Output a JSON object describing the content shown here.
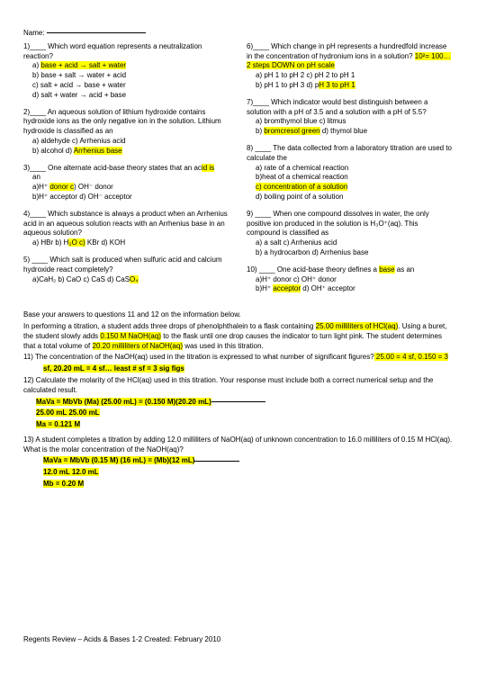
{
  "name_label": "Name:",
  "left": [
    {
      "num": "1)____",
      "text": "Which word equation represents a neutralization reaction?",
      "opts": [
        {
          "pre": "a)   ",
          "t": "base + acid → salt + water",
          "hl": true
        },
        {
          "pre": "b)   ",
          "t": "base + salt → water + acid",
          "hl": false
        },
        {
          "pre": "c)   ",
          "t": "salt + acid → base + water",
          "hl": false
        },
        {
          "pre": "d)   ",
          "t": "salt + water → acid + base",
          "hl": false
        }
      ]
    },
    {
      "num": "2)____",
      "text": "An aqueous solution of lithium hydroxide contains hydroxide ions as the only negative ion in the solution. Lithium hydroxide is classified as an",
      "opts": [
        {
          "pre": "a)   ",
          "t": "aldehyde  c) Arrhenius acid",
          "hl": false
        },
        {
          "pre": "b)   ",
          "t": "alcohol  d) ",
          "hl": false,
          "tail": "Arrhenius base",
          "tailhl": true
        }
      ]
    },
    {
      "num": "3)____",
      "text_parts": [
        {
          "t": "One alternate acid-base theory states that an ac",
          "hl": false
        },
        {
          "t": "id is",
          "hl": true
        }
      ],
      "text2": "an",
      "opts": [
        {
          "pre": "a)",
          "t": "H⁺ ",
          "hl": false,
          "mid": "donor  c",
          "midhl": true,
          "tail": ") OH⁻  donor"
        },
        {
          "pre": "b)",
          "t": "H⁺ acceptor  d) OH⁻ acceptor",
          "hl": false
        }
      ]
    },
    {
      "num": "4)____",
      "text": "Which substance is always a product when an Arrhenius acid in an aqueous solution reacts with an Arrhenius base in an aqueous solution?",
      "opts": [
        {
          "pre": "a)   ",
          "t": "HBr  b) H",
          "hl": false,
          "mid": "₂O c)",
          "midhl": true,
          "tail": " KBr d) KOH"
        }
      ]
    },
    {
      "num": "5)   ____",
      "text": "Which salt is produced when sulfuric acid and calcium hydroxide react completely?",
      "opts": [
        {
          "pre": "a)",
          "t": "CaH₂  b) CaO c) CaS d) CaS",
          "hl": false,
          "mid": "O₄",
          "midhl": true
        }
      ]
    }
  ],
  "right": [
    {
      "num": "6)____",
      "text_parts": [
        {
          "t": "Which change in pH represents a hundredfold increase in the concentration of hydronium ions in a solution? ",
          "hl": false
        },
        {
          "t": "10²= 100… 2 steps DOWN on pH scale",
          "hl": true
        }
      ],
      "opts": [
        {
          "pre": "a)   ",
          "t": "pH 1 to pH 2  c) pH 2 to pH 1",
          "hl": false
        },
        {
          "pre": "b)   ",
          "t": "pH 1 to pH 3  d) p",
          "hl": false,
          "mid": "H 3 to pH 1",
          "midhl": true
        }
      ]
    },
    {
      "num": "7)____",
      "text": "Which indicator would best distinguish between a solution with a pH of 3.5 and a solution with a pH of 5.5?",
      "opts": [
        {
          "pre": "a)   ",
          "t": "bromthymol blue   c) litmus",
          "hl": false
        },
        {
          "pre": "b)   ",
          "mid": "bromcresol green",
          "midhl": true,
          "tail": "  d) thymol blue"
        }
      ]
    },
    {
      "num": "8)   ____",
      "text": "The data collected from a laboratory titration are used to calculate the",
      "opts": [
        {
          "pre": "a)   ",
          "t": "rate of a chemical reaction",
          "hl": false
        },
        {
          "pre": "b)",
          "t": "heat of a chemical reaction",
          "hl": false
        },
        {
          "pre": "",
          "mid": "c)   concentration of a solution",
          "midhl": true
        },
        {
          "pre": "d)   ",
          "t": "boiling point of a solution",
          "hl": false
        }
      ]
    },
    {
      "num": "9)   ____",
      "text": "When one compound dissolves in water, the only positive ion produced in the solution is H₃O⁺(aq). This compound is classified as",
      "opts": [
        {
          "pre": "a)   ",
          "t": "a salt  c) Arrhenius acid",
          "hl": false,
          "tail": "          ",
          "tailhl": true
        },
        {
          "pre": "b)   ",
          "t": "a hydrocarbon  d) Arrhenius base",
          "hl": false
        }
      ]
    },
    {
      "num": "10) ____",
      "text_parts": [
        {
          "t": "One acid-base theory defines a ",
          "hl": false
        },
        {
          "t": "base",
          "hl": true
        },
        {
          "t": " as an",
          "hl": false
        }
      ],
      "opts": [
        {
          "pre": "a)",
          "t": "H⁺ donor     c) OH⁺ donor",
          "hl": false
        },
        {
          "pre": "b)",
          "t": "H⁺ ",
          "hl": false,
          "mid": "acceptor",
          "midhl": true,
          "tail": "  d) OH⁺ acceptor"
        }
      ]
    }
  ],
  "lower": {
    "intro": "Base your answers to questions 11 and 12 on the information below.",
    "p1_parts": [
      {
        "t": "In performing a titration, a student adds three drops of phenolphthalein to a flask containing ",
        "hl": false
      },
      {
        "t": "25.00 milliliters of HCl(aq)",
        "hl": true
      },
      {
        "t": ". Using a buret, the student slowly adds ",
        "hl": false
      },
      {
        "t": "0.150 M NaOH(aq)",
        "hl": true
      },
      {
        "t": " to the flask until one drop causes the indicator to turn light pink. The student determines that a total volume of ",
        "hl": false
      },
      {
        "t": "20.20 milliliters of NaOH(aq)",
        "hl": true
      },
      {
        "t": " was used in this titration.",
        "hl": false
      }
    ],
    "q11_parts": [
      {
        "t": "11)  The concentration of the NaOH(aq) used in the titration is expressed to what number of significant figures?",
        "hl": false
      },
      {
        "t": " 25.00 = 4 sf, 0.150 = 3",
        "hl": true
      }
    ],
    "q11_ans": "sf, 20.20 mL = 4 sf… least # sf = 3 sig figs",
    "q12": "12)  Calculate the molarity of the HCl(aq) used in this titration. Your response must include both a correct numerical setup and the calculated result.",
    "q12_l1": "MaVa = MbVb  (Ma) (25.00 mL) = (0.150 M)(20.20 mL)",
    "q12_l2": "25.00 mL                      25.00 mL",
    "q12_l3": "Ma = 0.121 M",
    "q13": "13)  A student completes a titration by adding 12.0 milliliters of NaOH(aq) of unknown concentration to 16.0 milliliters of 0.15 M HCl(aq). What is the molar concentration of the NaOH(aq)?",
    "q13_l1": "MaVa = MbVb   (0.15 M) (16 mL) = (Mb)(12 mL)",
    "q13_l2": "       12.0 mL               12.0 mL",
    "q13_l3": "Mb = 0.20 M"
  },
  "footer": "Regents Review – Acids & Bases 1-2 Created: February 2010"
}
